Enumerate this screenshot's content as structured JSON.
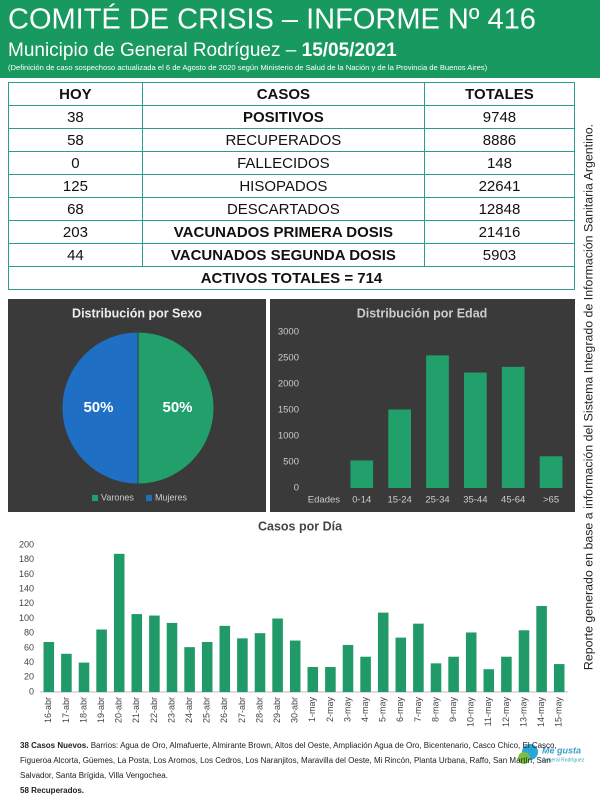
{
  "header": {
    "title": "COMITÉ DE CRISIS – INFORME Nº 416",
    "subtitle": "Municipio de General Rodríguez –",
    "date": "15/05/2021",
    "note": "(Definición de caso sospechoso actualizada el 6 de Agosto de 2020 según Ministerio de Salud de la Nación y de la Provincia de Buenos Aires)"
  },
  "table": {
    "columns": [
      "HOY",
      "CASOS",
      "TOTALES"
    ],
    "rows": [
      [
        38,
        "POSITIVOS",
        9748
      ],
      [
        58,
        "RECUPERADOS",
        8886
      ],
      [
        0,
        "FALLECIDOS",
        148
      ],
      [
        125,
        "HISOPADOS",
        22641
      ],
      [
        68,
        "DESCARTADOS",
        12848
      ],
      [
        203,
        "VACUNADOS PRIMERA DOSIS",
        21416
      ],
      [
        44,
        "VACUNADOS SEGUNDA DOSIS",
        5903
      ]
    ],
    "summary": "ACTIVOS TOTALES = 714"
  },
  "side_note": "Reporte generado en base a información del Sistema Integrado de Información Sanitaria Argentino.",
  "chart_data": [
    {
      "type": "pie",
      "title": "Distribución por Sexo",
      "categories": [
        "Varones",
        "Mujeres"
      ],
      "values": [
        50,
        50
      ],
      "value_labels": [
        "50%",
        "50%"
      ],
      "colors": [
        "#22a06b",
        "#1f6fc5"
      ],
      "legend": "bottom"
    },
    {
      "type": "bar",
      "title": "Distribución por Edad",
      "categories": [
        "Edades",
        "0-14",
        "15-24",
        "25-34",
        "35-44",
        "45-64",
        ">65"
      ],
      "values": [
        null,
        530,
        1510,
        2550,
        2220,
        2330,
        610
      ],
      "color": "#22a06b",
      "ylim": [
        0,
        3000
      ],
      "yticks": [
        0,
        500,
        1000,
        1500,
        2000,
        2500,
        3000
      ],
      "grid": false
    },
    {
      "type": "bar",
      "title": "Casos por Día",
      "categories": [
        "16-abr",
        "17-abr",
        "18-abr",
        "19-abr",
        "20-abr",
        "21-abr",
        "22-abr",
        "23-abr",
        "24-abr",
        "25-abr",
        "26-abr",
        "27-abr",
        "28-abr",
        "29-abr",
        "30-abr",
        "1-may",
        "2-may",
        "3-may",
        "4-may",
        "5-may",
        "6-may",
        "7-may",
        "8-may",
        "9-may",
        "10-may",
        "11-may",
        "12-may",
        "13-may",
        "14-may",
        "15-may"
      ],
      "values": [
        68,
        52,
        40,
        85,
        188,
        106,
        104,
        94,
        61,
        68,
        90,
        73,
        80,
        100,
        70,
        34,
        34,
        64,
        48,
        108,
        74,
        93,
        39,
        48,
        81,
        31,
        48,
        84,
        117,
        38
      ],
      "color": "#1f9a68",
      "ylim": [
        0,
        200
      ],
      "yticks": [
        0,
        20,
        40,
        60,
        80,
        100,
        120,
        140,
        160,
        180,
        200
      ],
      "grid": false
    }
  ],
  "footer": {
    "new_cases": "38 Casos Nuevos.",
    "barrios": "Barrios: Agua de Oro, Almafuerte, Almirante Brown, Altos del Oeste, Ampliación Agua de Oro, Bicentenario, Casco Chico, El Casco, Figueroa Alcorta, Güemes, La Posta, Los Aromos, Los Cedros, Los Naranjitos, Maravilla del Oeste, Mi Rincón, Planta Urbana, Raffo, San Martín, San Salvador, Santa Brígida, Villa Vengochea.",
    "recovered": "58 Recuperados."
  },
  "logo": {
    "line1": "Me gusta",
    "line2": "General Rodríguez"
  }
}
